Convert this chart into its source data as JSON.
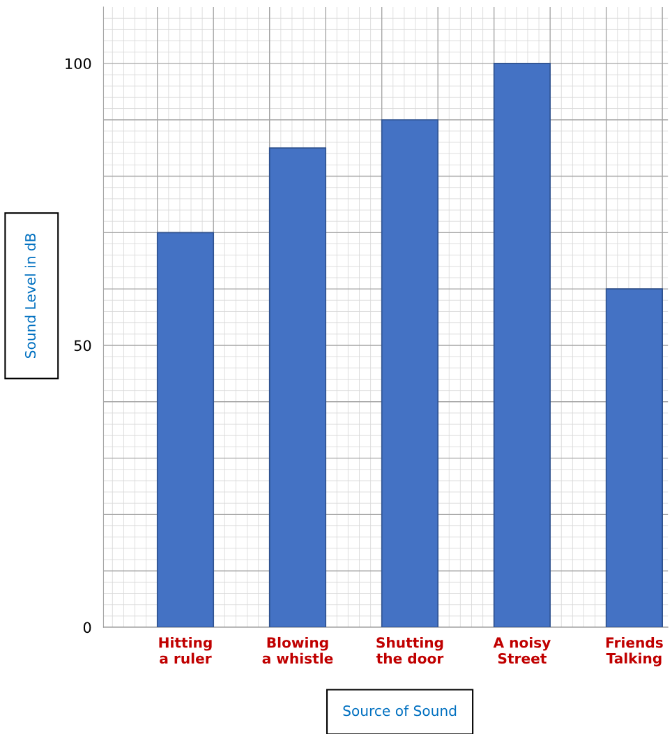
{
  "chart_data": {
    "type": "bar",
    "xlabel": "Source of Sound",
    "ylabel": "Sound Level in dB",
    "categories": [
      "Hitting\na ruler",
      "Blowing\na whistle",
      "Shutting\nthe door",
      "A noisy\nStreet",
      "Friends\nTalking"
    ],
    "values": [
      70,
      85,
      90,
      100,
      60
    ],
    "color": "#4472c4",
    "ylim": [
      0,
      110
    ],
    "yticks": [
      0,
      {
        "value": 10,
        "label": null
      },
      {
        "value": 20,
        "label": null
      },
      {
        "value": 30,
        "label": null
      },
      {
        "value": 40,
        "label": null
      },
      50,
      {
        "value": 60,
        "label": null
      },
      {
        "value": 70,
        "label": null
      },
      {
        "value": 80,
        "label": null
      },
      {
        "value": 90,
        "label": null
      },
      100
    ],
    "grid": true
  }
}
